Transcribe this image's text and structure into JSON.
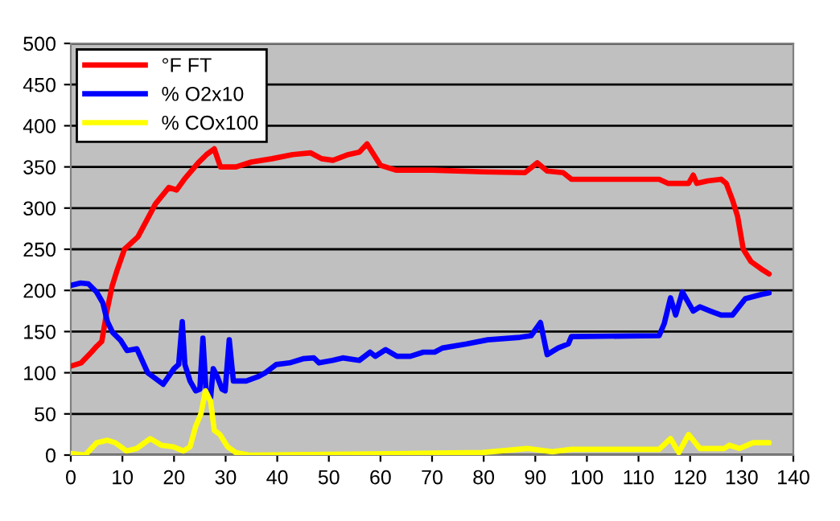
{
  "chart_data": {
    "type": "line",
    "xlim": [
      0,
      140
    ],
    "xticks": [
      0,
      10,
      20,
      30,
      40,
      50,
      60,
      70,
      80,
      90,
      100,
      110,
      120,
      130,
      140
    ],
    "ylim": [
      0,
      500
    ],
    "yticks": [
      0,
      50,
      100,
      150,
      200,
      250,
      300,
      350,
      400,
      450,
      500
    ],
    "grid": "y",
    "legend": "top left",
    "marker": "none",
    "line_style": "solid",
    "series": [
      {
        "name": "°F FT",
        "color": "#ff0000",
        "x": [
          0,
          2,
          4,
          5,
          6,
          7,
          8,
          9,
          10.4,
          13,
          16.4,
          19,
          20.5,
          22,
          24.7,
          26.3,
          27.8,
          29,
          32,
          35,
          39,
          43,
          46.5,
          48.6,
          50.8,
          53.8,
          55.9,
          57.4,
          60,
          63,
          70,
          80,
          88,
          90.4,
          92.3,
          95.4,
          97,
          114,
          115.7,
          119.7,
          120.6,
          121.3,
          123.4,
          126,
          127,
          128.2,
          129.2,
          130.3,
          131.8,
          133.8,
          135.3
        ],
        "values": [
          108,
          112,
          125,
          132,
          138,
          175,
          205,
          225,
          250,
          265,
          305,
          325,
          322,
          335,
          355,
          365,
          372,
          350,
          350,
          356,
          360,
          365,
          367,
          360,
          358,
          365,
          368,
          378,
          352,
          346,
          346,
          344,
          343,
          355,
          345,
          343,
          335,
          335,
          330,
          330,
          340,
          330,
          333,
          335,
          330,
          310,
          290,
          250,
          235,
          226,
          220
        ]
      },
      {
        "name": "% O2x10",
        "color": "#0000ff",
        "x": [
          0,
          1.9,
          3.4,
          5,
          6.2,
          7.1,
          8.1,
          9.7,
          10.9,
          12.8,
          14.9,
          17.9,
          20,
          20.9,
          21.6,
          22.1,
          23.1,
          24.2,
          25,
          25.6,
          26.2,
          27.1,
          27.6,
          28.4,
          29.3,
          29.9,
          30.7,
          31.5,
          34,
          36.2,
          37.7,
          39.8,
          42.4,
          45,
          47.1,
          48.1,
          50.7,
          52.7,
          55.9,
          58,
          59,
          61,
          63.2,
          65.8,
          68.3,
          70.5,
          72,
          76.7,
          80.8,
          87,
          89.2,
          91,
          92.3,
          94.4,
          96.4,
          97,
          114,
          115,
          116.2,
          117.2,
          118.5,
          120.6,
          121.9,
          123.9,
          126,
          128.2,
          130.7,
          133.8,
          135.3
        ],
        "values": [
          206,
          209,
          208,
          198,
          185,
          162,
          149,
          139,
          127,
          129,
          100,
          86,
          105,
          110,
          162,
          110,
          90,
          78,
          80,
          142,
          78,
          70,
          105,
          95,
          80,
          78,
          140,
          90,
          90,
          95,
          100,
          110,
          112,
          117,
          118,
          112,
          115,
          118,
          115,
          125,
          120,
          128,
          120,
          120,
          125,
          125,
          130,
          135,
          140,
          143,
          145,
          161,
          122,
          130,
          135,
          144,
          145,
          160,
          191,
          170,
          198,
          175,
          180,
          175,
          170,
          170,
          190,
          195,
          197
        ]
      },
      {
        "name": "% COx100",
        "color": "#ffff00",
        "x": [
          0,
          2.8,
          5,
          7.1,
          8.6,
          10.8,
          12.8,
          15.4,
          17.5,
          19.9,
          21.8,
          23.1,
          24.2,
          25.2,
          26.1,
          27.1,
          27.8,
          28.9,
          30.4,
          32,
          34.6,
          67.4,
          79.8,
          88.4,
          93.3,
          97,
          114,
          116.2,
          117.8,
          119.7,
          121.9,
          126.6,
          127.6,
          129.6,
          132.2,
          135.3
        ],
        "values": [
          2,
          0,
          15,
          18,
          15,
          5,
          8,
          20,
          12,
          10,
          5,
          10,
          35,
          50,
          78,
          65,
          30,
          25,
          10,
          3,
          0,
          2,
          3,
          8,
          4,
          7,
          7,
          20,
          3,
          25,
          8,
          8,
          12,
          8,
          15,
          15
        ]
      }
    ]
  }
}
